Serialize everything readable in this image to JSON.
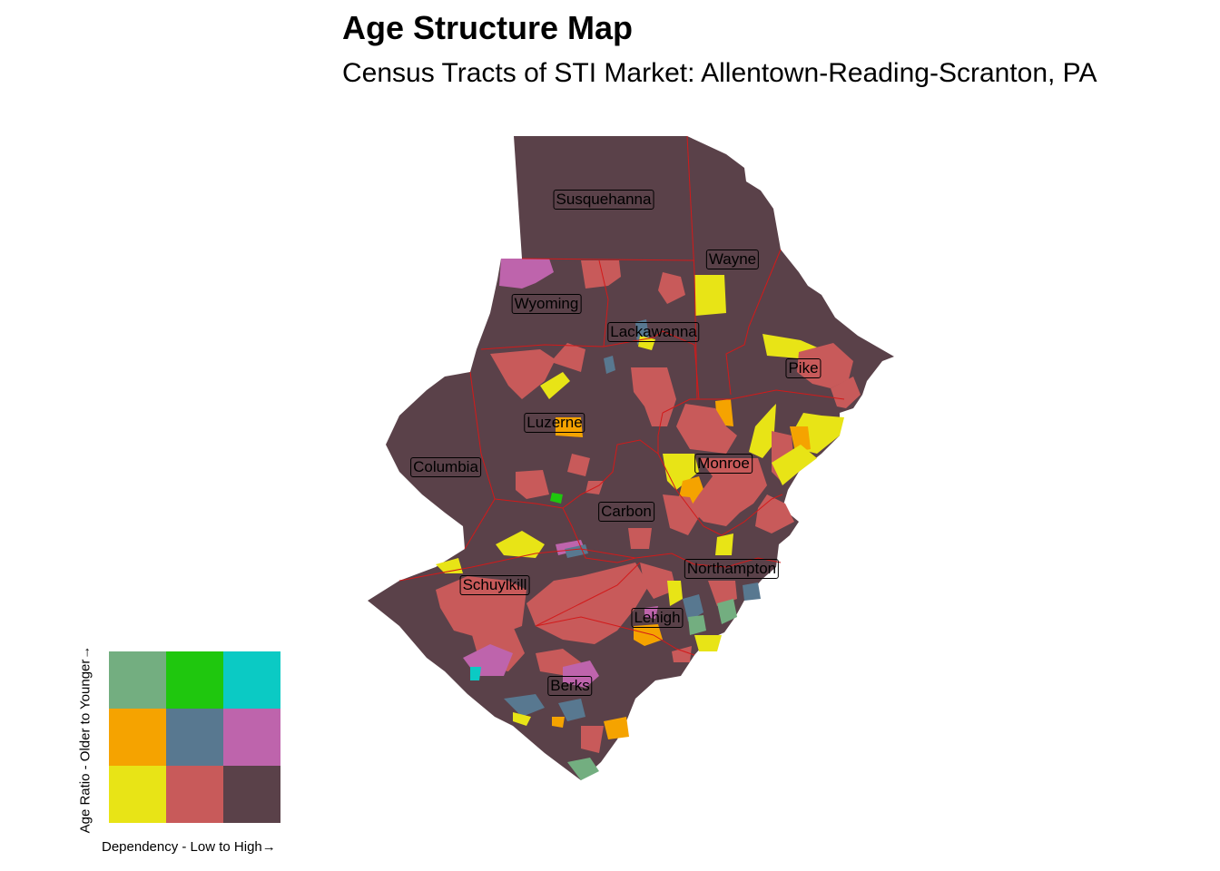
{
  "title": "Age Structure Map",
  "subtitle": "Census Tracts of STI Market: Allentown-Reading-Scranton, PA",
  "colors": {
    "base": "#5a4149",
    "red": "#c85a5a",
    "yellow": "#e8e416",
    "orange": "#f5a300",
    "slate": "#587890",
    "magenta": "#be64ac",
    "sage": "#73ae80",
    "green": "#1fc70e",
    "teal": "#0bcac4",
    "county_border": "#d21a1a"
  },
  "counties": [
    {
      "name": "Susquehanna"
    },
    {
      "name": "Wayne"
    },
    {
      "name": "Wyoming"
    },
    {
      "name": "Lackawanna"
    },
    {
      "name": "Pike"
    },
    {
      "name": "Luzerne"
    },
    {
      "name": "Columbia"
    },
    {
      "name": "Monroe"
    },
    {
      "name": "Carbon"
    },
    {
      "name": "Northampton"
    },
    {
      "name": "Schuylkill"
    },
    {
      "name": "Lehigh"
    },
    {
      "name": "Berks"
    }
  ],
  "legend": {
    "x_label": "Dependency - Low to High→",
    "y_label": "Age Ratio - Older to Younger→",
    "cells": [
      [
        "#73ae80",
        "#1fc70e",
        "#0bcac4"
      ],
      [
        "#f5a300",
        "#587890",
        "#be64ac"
      ],
      [
        "#e8e416",
        "#c85a5a",
        "#5a4149"
      ]
    ]
  }
}
